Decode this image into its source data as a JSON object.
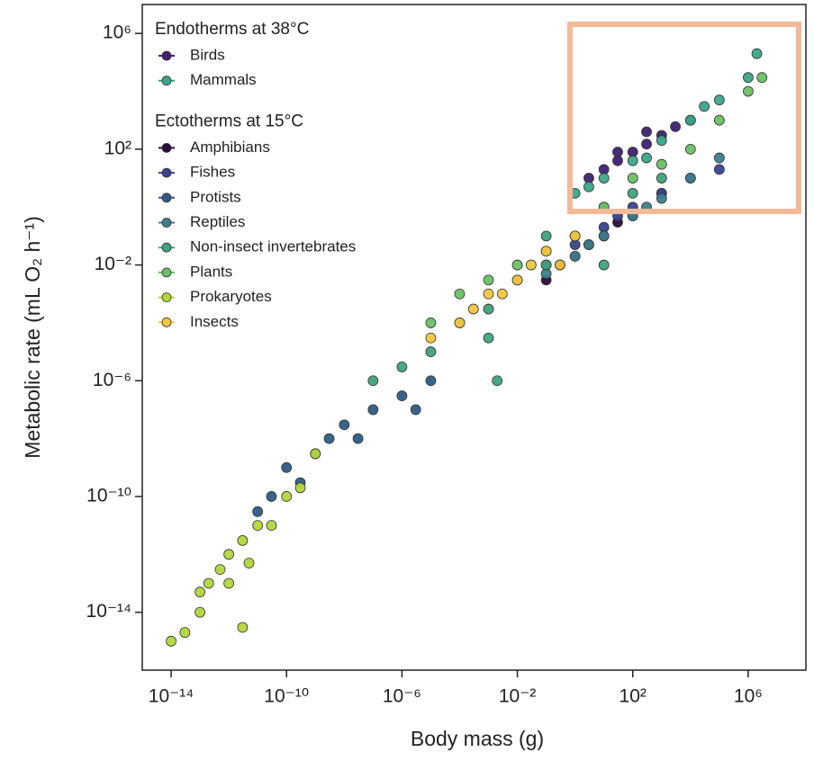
{
  "chart_data": {
    "type": "scatter",
    "x_label": "Body mass (g)",
    "y_label": "Metabolic rate (mL O₂ h⁻¹)",
    "xscale": "log",
    "yscale": "log",
    "xlim": [
      1e-15,
      100000000.0
    ],
    "ylim": [
      1e-16,
      10000000.0
    ],
    "xticks": [
      {
        "value": 1e-14,
        "label": "10⁻¹⁴"
      },
      {
        "value": 1e-10,
        "label": "10⁻¹⁰"
      },
      {
        "value": 1e-06,
        "label": "10⁻⁶"
      },
      {
        "value": 0.01,
        "label": "10⁻²"
      },
      {
        "value": 100,
        "label": "10²"
      },
      {
        "value": 1000000,
        "label": "10⁶"
      }
    ],
    "yticks": [
      {
        "value": 1000000,
        "label": "10⁶"
      },
      {
        "value": 100,
        "label": "10²"
      },
      {
        "value": 0.01,
        "label": "10⁻²"
      },
      {
        "value": 1e-06,
        "label": "10⁻⁶"
      },
      {
        "value": 1e-10,
        "label": "10⁻¹⁰"
      },
      {
        "value": 1e-14,
        "label": "10⁻¹⁴"
      }
    ],
    "legend_position": "upper left",
    "legend_groups": [
      {
        "title": "Endotherms at 38°C",
        "series": [
          {
            "name": "Birds",
            "color": "#3d2170",
            "x": [
              3,
              10,
              30,
              100,
              300,
              1000,
              3000,
              10000,
              30,
              300
            ],
            "values": [
              10,
              20,
              40,
              80,
              150,
              300,
              600,
              1000,
              80,
              400
            ]
          },
          {
            "name": "Mammals",
            "color": "#3aa58a",
            "x": [
              1,
              3,
              10,
              100,
              1000,
              10000,
              100000,
              1000000,
              2000000,
              300,
              30000
            ],
            "values": [
              3,
              5,
              10,
              40,
              200,
              1000,
              5000,
              30000,
              200000,
              50,
              3000
            ]
          }
        ]
      },
      {
        "title": "Ectotherms at 15°C",
        "series": [
          {
            "name": "Amphibians",
            "color": "#2a0b3c",
            "x": [
              0.1,
              0.3,
              1,
              3,
              10,
              30,
              100,
              1000
            ],
            "values": [
              0.003,
              0.01,
              0.02,
              0.05,
              0.1,
              0.3,
              0.5,
              3
            ]
          },
          {
            "name": "Fishes",
            "color": "#3a4290",
            "x": [
              0.1,
              1,
              10,
              100,
              1000,
              10000,
              100000,
              30
            ],
            "values": [
              0.01,
              0.05,
              0.2,
              1,
              3,
              10,
              20,
              0.5
            ]
          },
          {
            "name": "Protists",
            "color": "#2f5b86",
            "x": [
              1e-11,
              3e-11,
              1e-10,
              3e-10,
              1e-09,
              3e-09,
              1e-08,
              3e-08,
              1e-07,
              1e-06,
              1e-05,
              3e-06
            ],
            "values": [
              3e-11,
              1e-10,
              1e-09,
              3e-10,
              3e-09,
              1e-08,
              3e-08,
              1e-08,
              1e-07,
              3e-07,
              1e-06,
              1e-07
            ]
          },
          {
            "name": "Reptiles",
            "color": "#3c7e8e",
            "x": [
              0.1,
              1,
              10,
              100,
              1000,
              10000,
              100000,
              3,
              300
            ],
            "values": [
              0.005,
              0.02,
              0.1,
              0.5,
              2,
              10,
              50,
              0.05,
              1
            ]
          },
          {
            "name": "Non-insect invertebrates",
            "color": "#3fa27a",
            "x": [
              1e-07,
              1e-06,
              1e-05,
              0.0001,
              0.001,
              0.01,
              0.1,
              1,
              10,
              100,
              1000,
              0.001,
              0.1,
              10,
              0.002
            ],
            "values": [
              1e-06,
              3e-06,
              1e-05,
              0.0001,
              0.0003,
              0.003,
              0.01,
              0.1,
              1,
              3,
              10,
              3e-05,
              0.1,
              0.01,
              1e-06
            ]
          },
          {
            "name": "Plants",
            "color": "#6cbf66",
            "x": [
              1e-05,
              0.0001,
              0.001,
              0.01,
              0.1,
              1,
              10,
              100,
              1000,
              10000,
              100000,
              1000000,
              3000000
            ],
            "values": [
              0.0001,
              0.001,
              0.003,
              0.01,
              0.03,
              0.1,
              1,
              10,
              30,
              100,
              1000,
              10000,
              30000
            ]
          },
          {
            "name": "Prokaryotes",
            "color": "#b3d63b",
            "x": [
              1e-14,
              3e-14,
              1e-13,
              2e-13,
              5e-13,
              1e-12,
              1e-12,
              3e-12,
              1e-11,
              3e-11,
              1e-10,
              3e-10,
              1e-09,
              1e-13,
              5e-12,
              3e-12
            ],
            "values": [
              1e-15,
              2e-15,
              5e-14,
              1e-13,
              3e-13,
              1e-12,
              1e-13,
              3e-12,
              1e-11,
              1e-11,
              1e-10,
              2e-10,
              3e-09,
              1e-14,
              5e-13,
              3e-15
            ]
          },
          {
            "name": "Insects",
            "color": "#f3c53d",
            "x": [
              1e-05,
              0.0001,
              0.0003,
              0.001,
              0.003,
              0.01,
              0.03,
              0.1,
              0.3,
              1
            ],
            "values": [
              3e-05,
              0.0001,
              0.0003,
              0.001,
              0.001,
              0.003,
              0.01,
              0.03,
              0.01,
              0.1
            ]
          }
        ]
      }
    ]
  }
}
